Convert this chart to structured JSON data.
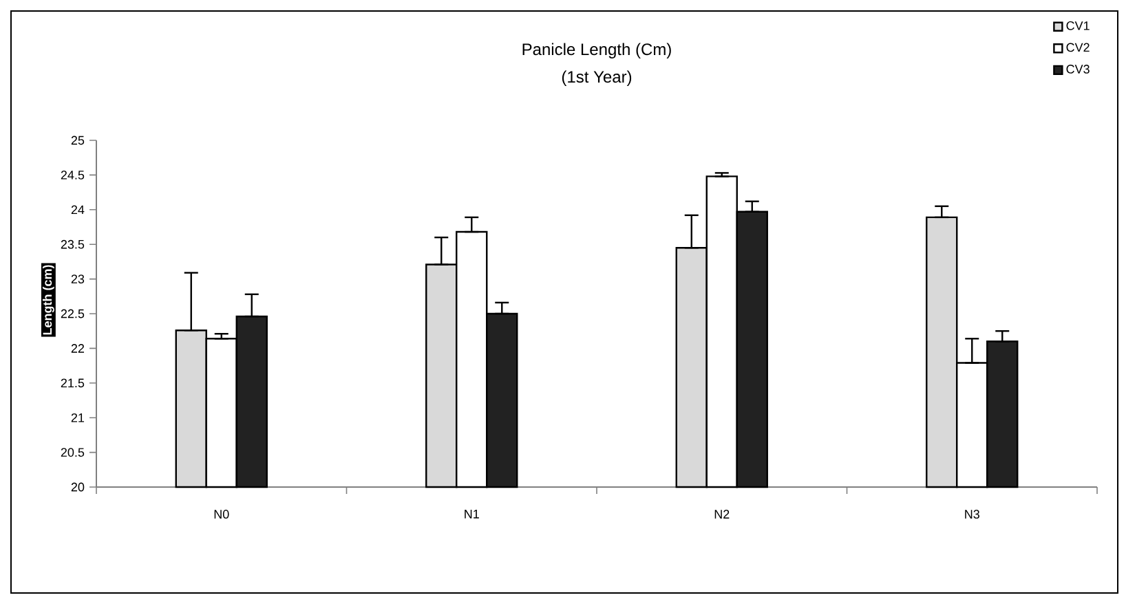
{
  "chart_data": {
    "type": "bar",
    "title": "Panicle Length (Cm)",
    "subtitle": "(1st Year)",
    "ylabel": "Length (cm)",
    "categories": [
      "N0",
      "N1",
      "N2",
      "N3"
    ],
    "series": [
      {
        "name": "CV1",
        "color": "#d9d9d9",
        "values": [
          22.26,
          23.21,
          23.45,
          23.89
        ],
        "errors": [
          [
            22.26,
            23.09
          ],
          [
            23.21,
            23.6
          ],
          [
            23.45,
            23.92
          ],
          [
            23.89,
            24.05
          ]
        ]
      },
      {
        "name": "CV2",
        "color": "#ffffff",
        "values": [
          22.14,
          23.68,
          24.48,
          21.79
        ],
        "errors": [
          [
            22.14,
            22.21
          ],
          [
            23.68,
            23.89
          ],
          [
            24.48,
            24.53
          ],
          [
            21.79,
            22.14
          ]
        ]
      },
      {
        "name": "CV3",
        "color": "#222222",
        "values": [
          22.46,
          22.5,
          23.97,
          22.1
        ],
        "errors": [
          [
            22.46,
            22.78
          ],
          [
            22.5,
            22.66
          ],
          [
            23.97,
            24.12
          ],
          [
            22.1,
            22.25
          ]
        ]
      }
    ],
    "ylim": [
      20,
      25
    ],
    "yticks": [
      20,
      20.5,
      21,
      21.5,
      22,
      22.5,
      23,
      23.5,
      24,
      24.5,
      25
    ],
    "grid": false,
    "legend": "top right"
  }
}
